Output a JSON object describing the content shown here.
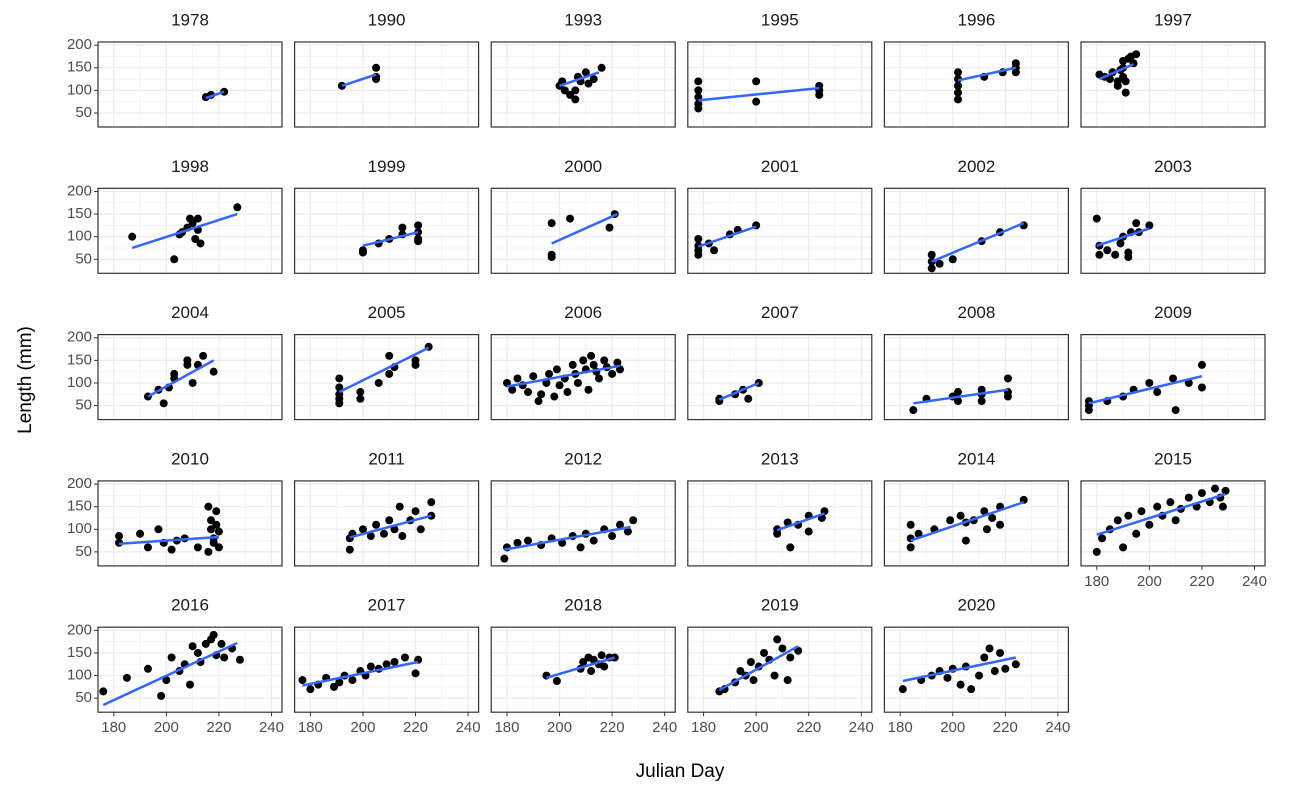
{
  "chart_data": {
    "type": "facet-scatter",
    "xlabel": "Julian Day",
    "ylabel": "Length (mm)",
    "xlim": [
      174,
      244
    ],
    "ylim": [
      19,
      207
    ],
    "xticks": [
      180,
      200,
      220,
      240
    ],
    "yticks": [
      50,
      100,
      150,
      200
    ],
    "grid": true,
    "point_color": "#000000",
    "fit_color": "#3366ff",
    "panels": [
      {
        "title": "1978",
        "x": [
          215,
          217,
          222
        ],
        "y": [
          85,
          90,
          97
        ],
        "fit_x": [
          215,
          222
        ],
        "fit_y": [
          83,
          97
        ]
      },
      {
        "title": "1990",
        "x": [
          192,
          205,
          205,
          205
        ],
        "y": [
          110,
          125,
          150,
          130
        ],
        "fit_x": [
          192,
          205
        ],
        "fit_y": [
          110,
          135
        ]
      },
      {
        "title": "1993",
        "x": [
          200,
          201,
          202,
          204,
          206,
          207,
          208,
          210,
          211,
          213,
          216,
          206
        ],
        "y": [
          110,
          120,
          100,
          90,
          80,
          130,
          120,
          140,
          115,
          125,
          150,
          100
        ],
        "fit_x": [
          200,
          215
        ],
        "fit_y": [
          110,
          140
        ]
      },
      {
        "title": "1995",
        "x": [
          178,
          178,
          178,
          178,
          178,
          200,
          200,
          224,
          224,
          224
        ],
        "y": [
          120,
          100,
          85,
          70,
          60,
          120,
          75,
          110,
          90,
          100
        ],
        "fit_x": [
          178,
          224
        ],
        "fit_y": [
          78,
          105
        ]
      },
      {
        "title": "1996",
        "x": [
          202,
          202,
          202,
          202,
          202,
          212,
          219,
          224,
          224,
          224
        ],
        "y": [
          80,
          95,
          110,
          125,
          140,
          130,
          140,
          160,
          140,
          150
        ],
        "fit_x": [
          202,
          224
        ],
        "fit_y": [
          122,
          150
        ]
      },
      {
        "title": "1997",
        "x": [
          181,
          183,
          185,
          186,
          188,
          188,
          189,
          190,
          190,
          191,
          191,
          192,
          193,
          194,
          195,
          190
        ],
        "y": [
          135,
          130,
          125,
          140,
          120,
          110,
          145,
          130,
          150,
          120,
          95,
          170,
          175,
          160,
          180,
          165
        ],
        "fit_x": [
          181,
          194
        ],
        "fit_y": [
          125,
          158
        ]
      },
      {
        "title": "1998",
        "x": [
          187,
          203,
          205,
          206,
          208,
          209,
          210,
          211,
          212,
          213,
          212,
          227
        ],
        "y": [
          100,
          50,
          105,
          110,
          120,
          140,
          130,
          95,
          115,
          85,
          140,
          165
        ],
        "fit_x": [
          187,
          227
        ],
        "fit_y": [
          75,
          150
        ]
      },
      {
        "title": "1999",
        "x": [
          200,
          200,
          206,
          210,
          215,
          215,
          221,
          221,
          221,
          221
        ],
        "y": [
          70,
          65,
          85,
          95,
          120,
          105,
          125,
          110,
          95,
          90
        ],
        "fit_x": [
          200,
          221
        ],
        "fit_y": [
          80,
          110
        ]
      },
      {
        "title": "2000",
        "x": [
          197,
          197,
          197,
          204,
          219,
          221
        ],
        "y": [
          60,
          55,
          130,
          140,
          120,
          150
        ],
        "fit_x": [
          197,
          222
        ],
        "fit_y": [
          85,
          150
        ]
      },
      {
        "title": "2001",
        "x": [
          178,
          178,
          178,
          178,
          182,
          184,
          190,
          193,
          200
        ],
        "y": [
          95,
          80,
          70,
          60,
          85,
          70,
          105,
          115,
          125
        ],
        "fit_x": [
          178,
          200
        ],
        "fit_y": [
          78,
          122
        ]
      },
      {
        "title": "2002",
        "x": [
          192,
          192,
          192,
          195,
          200,
          211,
          218,
          227
        ],
        "y": [
          30,
          45,
          60,
          40,
          50,
          90,
          110,
          125
        ],
        "fit_x": [
          192,
          227
        ],
        "fit_y": [
          45,
          130
        ]
      },
      {
        "title": "2003",
        "x": [
          180,
          181,
          181,
          184,
          187,
          189,
          190,
          192,
          192,
          193,
          195,
          196,
          200
        ],
        "y": [
          140,
          80,
          60,
          70,
          60,
          85,
          100,
          65,
          55,
          110,
          130,
          110,
          125
        ],
        "fit_x": [
          180,
          200
        ],
        "fit_y": [
          80,
          118
        ]
      },
      {
        "title": "2004",
        "x": [
          193,
          197,
          199,
          201,
          203,
          203,
          208,
          208,
          210,
          212,
          214,
          218
        ],
        "y": [
          70,
          85,
          55,
          90,
          110,
          120,
          140,
          150,
          100,
          140,
          160,
          125
        ],
        "fit_x": [
          193,
          218
        ],
        "fit_y": [
          70,
          150
        ]
      },
      {
        "title": "2005",
        "x": [
          191,
          191,
          191,
          191,
          191,
          199,
          199,
          206,
          210,
          210,
          212,
          220,
          220,
          225
        ],
        "y": [
          55,
          65,
          75,
          90,
          110,
          80,
          65,
          100,
          120,
          160,
          135,
          150,
          140,
          180
        ],
        "fit_x": [
          191,
          225
        ],
        "fit_y": [
          80,
          178
        ]
      },
      {
        "title": "2006",
        "x": [
          180,
          182,
          184,
          186,
          188,
          190,
          192,
          193,
          195,
          196,
          198,
          199,
          200,
          202,
          203,
          205,
          206,
          207,
          209,
          210,
          211,
          212,
          213,
          214,
          215,
          217,
          218,
          220,
          222,
          223
        ],
        "y": [
          100,
          85,
          110,
          95,
          80,
          115,
          60,
          75,
          100,
          120,
          70,
          130,
          95,
          110,
          80,
          140,
          120,
          100,
          150,
          130,
          85,
          160,
          140,
          125,
          110,
          150,
          135,
          120,
          145,
          130
        ],
        "fit_x": [
          180,
          223
        ],
        "fit_y": [
          92,
          138
        ]
      },
      {
        "title": "2007",
        "x": [
          186,
          186,
          192,
          195,
          197,
          201
        ],
        "y": [
          65,
          60,
          75,
          85,
          65,
          100
        ],
        "fit_x": [
          186,
          201
        ],
        "fit_y": [
          63,
          100
        ]
      },
      {
        "title": "2008",
        "x": [
          185,
          190,
          200,
          202,
          202,
          211,
          211,
          211,
          221,
          221,
          221
        ],
        "y": [
          40,
          65,
          70,
          60,
          80,
          75,
          85,
          60,
          110,
          80,
          70
        ],
        "fit_x": [
          185,
          221
        ],
        "fit_y": [
          55,
          85
        ]
      },
      {
        "title": "2009",
        "x": [
          177,
          177,
          177,
          184,
          190,
          194,
          200,
          203,
          209,
          210,
          215,
          220,
          220
        ],
        "y": [
          40,
          50,
          60,
          60,
          70,
          85,
          100,
          80,
          110,
          40,
          100,
          140,
          90
        ],
        "fit_x": [
          177,
          220
        ],
        "fit_y": [
          55,
          115
        ]
      },
      {
        "title": "2010",
        "x": [
          182,
          182,
          190,
          193,
          197,
          199,
          202,
          204,
          207,
          212,
          216,
          216,
          217,
          217,
          218,
          218,
          219,
          219,
          220,
          220
        ],
        "y": [
          70,
          85,
          90,
          60,
          100,
          70,
          55,
          75,
          80,
          60,
          50,
          150,
          120,
          100,
          80,
          70,
          140,
          110,
          60,
          95
        ],
        "fit_x": [
          182,
          220
        ],
        "fit_y": [
          68,
          83
        ]
      },
      {
        "title": "2011",
        "x": [
          195,
          195,
          196,
          200,
          203,
          205,
          208,
          210,
          212,
          214,
          215,
          218,
          220,
          222,
          226,
          226
        ],
        "y": [
          55,
          80,
          90,
          100,
          85,
          110,
          90,
          120,
          100,
          150,
          85,
          120,
          140,
          100,
          160,
          130
        ],
        "fit_x": [
          195,
          226
        ],
        "fit_y": [
          82,
          130
        ]
      },
      {
        "title": "2012",
        "x": [
          179,
          180,
          184,
          188,
          193,
          197,
          201,
          205,
          208,
          210,
          213,
          217,
          220,
          223,
          226,
          228
        ],
        "y": [
          35,
          60,
          70,
          75,
          65,
          80,
          70,
          85,
          60,
          90,
          75,
          100,
          85,
          110,
          95,
          120
        ],
        "fit_x": [
          179,
          227
        ],
        "fit_y": [
          55,
          105
        ]
      },
      {
        "title": "2013",
        "x": [
          208,
          208,
          212,
          213,
          216,
          220,
          220,
          225,
          226
        ],
        "y": [
          100,
          90,
          115,
          60,
          110,
          95,
          130,
          125,
          140
        ],
        "fit_x": [
          208,
          226
        ],
        "fit_y": [
          98,
          135
        ]
      },
      {
        "title": "2014",
        "x": [
          184,
          184,
          184,
          187,
          193,
          199,
          203,
          205,
          205,
          208,
          212,
          213,
          215,
          218,
          218,
          227
        ],
        "y": [
          60,
          80,
          110,
          90,
          100,
          120,
          130,
          75,
          115,
          120,
          140,
          100,
          125,
          150,
          110,
          165
        ],
        "fit_x": [
          184,
          227
        ],
        "fit_y": [
          75,
          160
        ]
      },
      {
        "title": "2015",
        "x": [
          180,
          182,
          185,
          188,
          190,
          192,
          195,
          197,
          200,
          203,
          205,
          208,
          210,
          212,
          215,
          218,
          220,
          223,
          225,
          227,
          228,
          229
        ],
        "y": [
          50,
          80,
          100,
          120,
          60,
          130,
          90,
          140,
          110,
          150,
          130,
          160,
          120,
          145,
          170,
          150,
          180,
          160,
          190,
          170,
          150,
          185
        ],
        "fit_x": [
          180,
          229
        ],
        "fit_y": [
          88,
          178
        ]
      },
      {
        "title": "2016",
        "x": [
          176,
          185,
          193,
          198,
          200,
          202,
          205,
          207,
          209,
          210,
          212,
          213,
          215,
          217,
          218,
          219,
          221,
          222,
          225,
          228
        ],
        "y": [
          65,
          95,
          115,
          55,
          90,
          140,
          110,
          125,
          80,
          165,
          150,
          130,
          170,
          180,
          190,
          145,
          170,
          140,
          160,
          135
        ],
        "fit_x": [
          176,
          227
        ],
        "fit_y": [
          35,
          172
        ]
      },
      {
        "title": "2017",
        "x": [
          177,
          180,
          183,
          186,
          189,
          191,
          193,
          196,
          199,
          201,
          203,
          206,
          209,
          212,
          216,
          220,
          221
        ],
        "y": [
          90,
          70,
          80,
          95,
          75,
          85,
          100,
          90,
          110,
          100,
          120,
          115,
          125,
          130,
          140,
          105,
          135
        ],
        "fit_x": [
          177,
          221
        ],
        "fit_y": [
          78,
          130
        ]
      },
      {
        "title": "2018",
        "x": [
          195,
          199,
          208,
          209,
          211,
          212,
          213,
          215,
          216,
          217,
          219,
          221
        ],
        "y": [
          100,
          88,
          115,
          130,
          140,
          110,
          135,
          125,
          145,
          120,
          140,
          140
        ],
        "fit_x": [
          195,
          221
        ],
        "fit_y": [
          95,
          140
        ]
      },
      {
        "title": "2019",
        "x": [
          186,
          188,
          192,
          194,
          196,
          198,
          199,
          201,
          203,
          205,
          207,
          208,
          210,
          212,
          213,
          216
        ],
        "y": [
          65,
          70,
          85,
          110,
          100,
          130,
          90,
          120,
          150,
          135,
          100,
          180,
          160,
          90,
          140,
          155
        ],
        "fit_x": [
          186,
          216
        ],
        "fit_y": [
          68,
          165
        ]
      },
      {
        "title": "2020",
        "x": [
          181,
          188,
          192,
          195,
          198,
          200,
          203,
          205,
          207,
          210,
          212,
          214,
          216,
          218,
          220,
          224
        ],
        "y": [
          70,
          90,
          100,
          110,
          95,
          115,
          80,
          120,
          70,
          100,
          140,
          160,
          110,
          150,
          115,
          125
        ],
        "fit_x": [
          181,
          224
        ],
        "fit_y": [
          88,
          140
        ]
      }
    ]
  }
}
